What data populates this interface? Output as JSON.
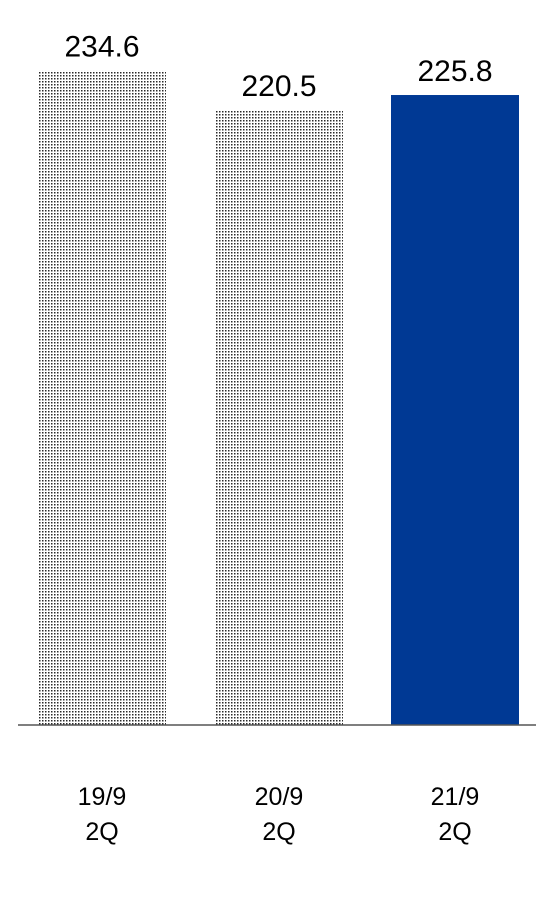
{
  "chart_data": {
    "type": "bar",
    "categories": [
      [
        "19/9",
        "2Q"
      ],
      [
        "20/9",
        "2Q"
      ],
      [
        "21/9",
        "2Q"
      ]
    ],
    "values": [
      234.6,
      220.5,
      225.8
    ],
    "value_labels": [
      "234.6",
      "220.5",
      "225.8"
    ],
    "bar_styles": [
      "dotted",
      "dotted",
      "solid"
    ],
    "colors": {
      "highlight": "#003994",
      "dots": "#2a2a2a",
      "axis": "#555555"
    },
    "grid": false,
    "legend": "none"
  }
}
